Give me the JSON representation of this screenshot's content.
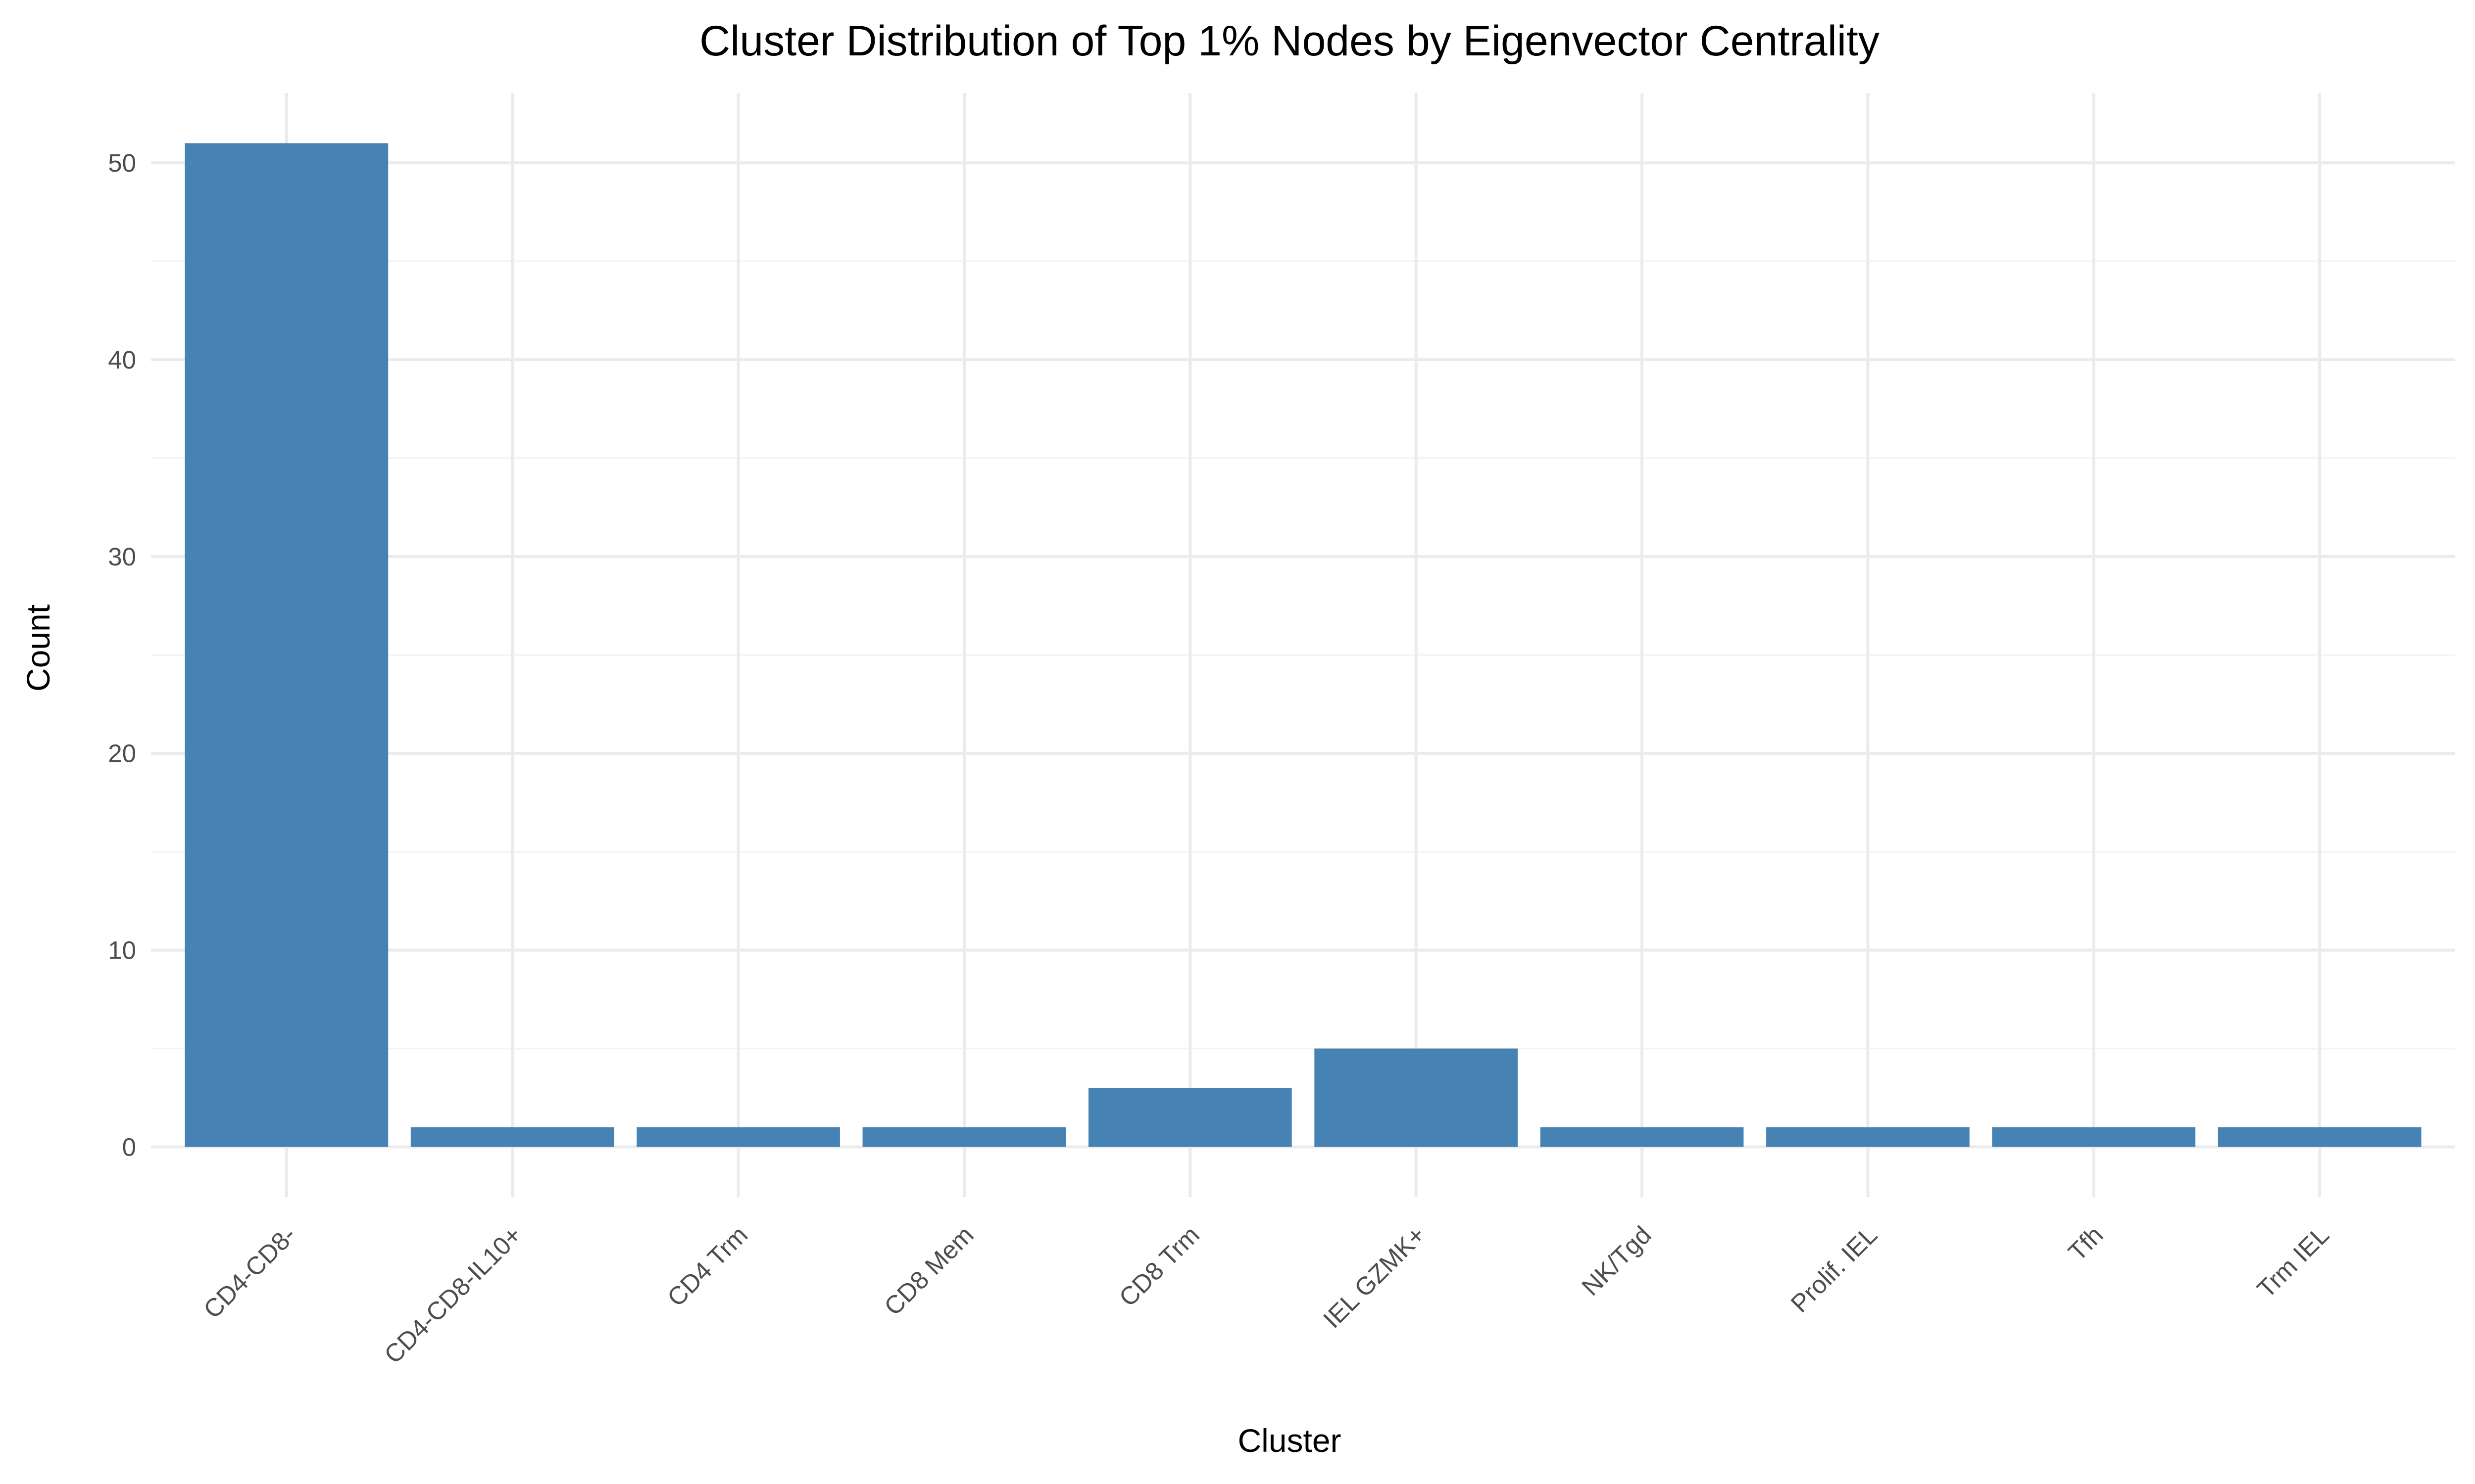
{
  "chart_data": {
    "type": "bar",
    "title": "Cluster Distribution of Top 1% Nodes by Eigenvector Centrality",
    "xlabel": "Cluster",
    "ylabel": "Count",
    "categories": [
      "CD4-CD8-",
      "CD4-CD8-IL10+",
      "CD4 Trm",
      "CD8 Mem",
      "CD8 Trm",
      "IEL GZMK+",
      "NK/Tgd",
      "Prolif. IEL",
      "Tfh",
      "Trm IEL"
    ],
    "values": [
      51,
      1,
      1,
      1,
      3,
      5,
      1,
      1,
      1,
      1
    ],
    "ylim": [
      -2.55,
      53.55
    ],
    "yticks": [
      "0",
      "10",
      "20",
      "30",
      "40",
      "50"
    ],
    "grid": true,
    "legend": "none",
    "bar_color": "#4682b4",
    "x_tick_rotation_deg": 45
  }
}
